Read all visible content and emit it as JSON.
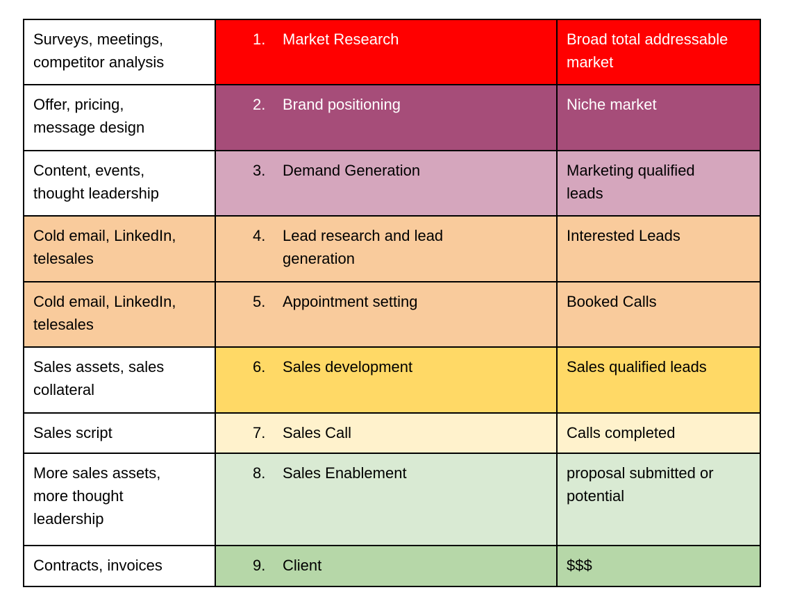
{
  "table": {
    "description_colors": {
      "border": "#000000",
      "red": "#ff0000",
      "dark_magenta": "#a64d79",
      "light_magenta": "#d5a6bd",
      "light_orange": "#f9cb9c",
      "gold_yellow": "#ffd966",
      "cream_yellow": "#fff2cc",
      "pale_green": "#d9ead3",
      "medium_green": "#b6d7a8",
      "white": "#ffffff",
      "black": "#000000"
    },
    "rows": [
      {
        "activity": "Surveys, meetings,\ncompetitor analysis",
        "number": "1.",
        "stage": "Market Research",
        "outcome": "Broad total addressable\nmarket",
        "activity_bg": "#ffffff",
        "activity_text": "#000000",
        "stage_bg": "#ff0000",
        "stage_text": "#ffffff"
      },
      {
        "activity": "Offer, pricing,\nmessage design",
        "number": "2.",
        "stage": "Brand positioning",
        "outcome": "Niche market",
        "activity_bg": "#ffffff",
        "activity_text": "#000000",
        "stage_bg": "#a64d79",
        "stage_text": "#ffffff"
      },
      {
        "activity": "Content, events,\nthought leadership",
        "number": "3.",
        "stage": "Demand Generation",
        "outcome": "Marketing qualified\nleads",
        "activity_bg": "#ffffff",
        "activity_text": "#000000",
        "stage_bg": "#d5a6bd",
        "stage_text": "#000000"
      },
      {
        "activity": "Cold email, LinkedIn,\ntelesales",
        "number": "4.",
        "stage": "Lead research and lead\ngeneration",
        "outcome": "Interested Leads",
        "activity_bg": "#f9cb9c",
        "activity_text": "#000000",
        "stage_bg": "#f9cb9c",
        "stage_text": "#000000"
      },
      {
        "activity": "Cold email, LinkedIn,\ntelesales",
        "number": "5.",
        "stage": "Appointment setting",
        "outcome": "Booked Calls",
        "activity_bg": "#f9cb9c",
        "activity_text": "#000000",
        "stage_bg": "#f9cb9c",
        "stage_text": "#000000"
      },
      {
        "activity": "Sales assets, sales\ncollateral",
        "number": "6.",
        "stage": "Sales development",
        "outcome": "Sales qualified leads",
        "activity_bg": "#ffffff",
        "activity_text": "#000000",
        "stage_bg": "#ffd966",
        "stage_text": "#000000"
      },
      {
        "activity": "Sales script",
        "number": "7.",
        "stage": "Sales Call",
        "outcome": "Calls completed",
        "activity_bg": "#ffffff",
        "activity_text": "#000000",
        "stage_bg": "#fff2cc",
        "stage_text": "#000000"
      },
      {
        "activity": "More sales assets,\nmore thought\nleadership",
        "number": "8.",
        "stage": "Sales Enablement",
        "outcome": "proposal submitted or\npotential",
        "activity_bg": "#ffffff",
        "activity_text": "#000000",
        "stage_bg": "#d9ead3",
        "stage_text": "#000000"
      },
      {
        "activity": "Contracts, invoices",
        "number": "9.",
        "stage": "Client",
        "outcome": "$$$",
        "activity_bg": "#ffffff",
        "activity_text": "#000000",
        "stage_bg": "#b6d7a8",
        "stage_text": "#000000"
      }
    ]
  }
}
